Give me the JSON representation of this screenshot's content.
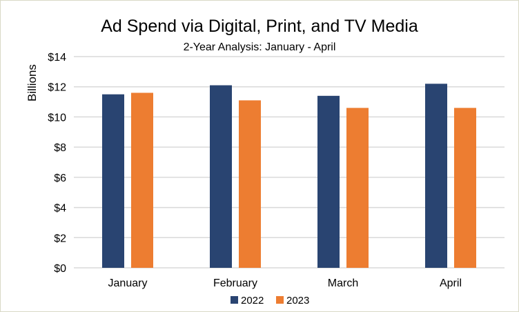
{
  "chart_data": {
    "type": "bar",
    "title": "Ad Spend via Digital, Print, and TV Media",
    "subtitle": "2-Year Analysis: January - April",
    "xlabel": "",
    "ylabel": "Billions",
    "categories": [
      "January",
      "February",
      "March",
      "April"
    ],
    "series": [
      {
        "name": "2022",
        "color": "#294471",
        "values": [
          11.5,
          12.1,
          11.4,
          12.2
        ]
      },
      {
        "name": "2023",
        "color": "#ED7D31",
        "values": [
          11.6,
          11.1,
          10.6,
          10.6
        ]
      }
    ],
    "ylim": [
      0,
      14
    ],
    "yticks": [
      0,
      2,
      4,
      6,
      8,
      10,
      12,
      14
    ],
    "ytick_labels": [
      "$0",
      "$2",
      "$4",
      "$6",
      "$8",
      "$10",
      "$12",
      "$14"
    ],
    "grid": true,
    "legend": "bottom"
  }
}
